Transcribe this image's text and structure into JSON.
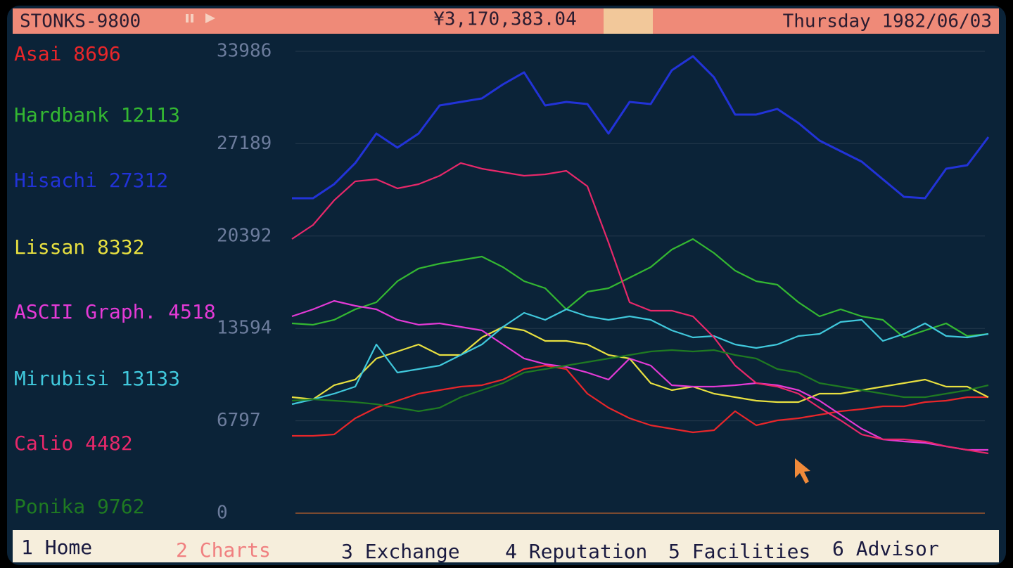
{
  "header": {
    "title": "STONKS-9800",
    "balance": "¥3,170,383.04",
    "date": "Thursday 1982/06/03"
  },
  "chart_data": {
    "type": "line",
    "ylim": [
      0,
      33986
    ],
    "yticks": [
      0,
      6797,
      13594,
      20392,
      27189,
      33986
    ],
    "grid": true,
    "series": [
      {
        "name": "Asai 8696",
        "color": "#e8262a",
        "values": [
          5690,
          5690,
          5794,
          6984,
          7759,
          8277,
          8794,
          9053,
          9311,
          9415,
          9829,
          10605,
          10863,
          10605,
          8794,
          7759,
          6984,
          6466,
          6208,
          5949,
          6104,
          7501,
          6466,
          6828,
          6984,
          7242,
          7501,
          7656,
          7863,
          7863,
          8173,
          8277,
          8535,
          8535
        ]
      },
      {
        "name": "Hardbank 12113",
        "color": "#34b832",
        "values": [
          13967,
          13864,
          14226,
          15002,
          15519,
          17071,
          18002,
          18364,
          18623,
          18881,
          18106,
          17071,
          16554,
          15002,
          16295,
          16554,
          17330,
          18106,
          19399,
          20175,
          19140,
          17847,
          17071,
          16812,
          15519,
          14484,
          15002,
          14484,
          14226,
          12932,
          13450,
          13967,
          13036,
          13191
        ]
      },
      {
        "name": "Hisachi 27312",
        "color": "#2233d8",
        "values": [
          23175,
          23175,
          24210,
          25762,
          27934,
          26900,
          27934,
          30003,
          30262,
          30521,
          31555,
          32435,
          30003,
          30262,
          30107,
          27934,
          30262,
          30107,
          32590,
          33625,
          32073,
          29331,
          29331,
          29745,
          28710,
          27417,
          26641,
          25865,
          24572,
          23279,
          23175,
          25348,
          25606,
          27676
        ]
      },
      {
        "name": "Lissan 8332",
        "color": "#e8e040",
        "values": [
          8535,
          8380,
          9415,
          9829,
          11381,
          11898,
          12415,
          11639,
          11639,
          12932,
          13708,
          13450,
          12674,
          12674,
          12415,
          11639,
          11381,
          9570,
          9053,
          9311,
          8794,
          8535,
          8277,
          8173,
          8173,
          8794,
          8794,
          9053,
          9311,
          9570,
          9829,
          9311,
          9311,
          8535
        ]
      },
      {
        "name": "ASCII Graph. 4518",
        "color": "#e43ad6",
        "values": [
          14484,
          15002,
          15622,
          15260,
          15002,
          14226,
          13864,
          13967,
          13708,
          13450,
          12415,
          11381,
          10967,
          10760,
          10346,
          9829,
          11381,
          10863,
          9415,
          9311,
          9311,
          9415,
          9570,
          9415,
          9053,
          8277,
          7242,
          6207,
          5432,
          5277,
          5173,
          4914,
          4656,
          4656
        ]
      },
      {
        "name": "Mirubisi 13133",
        "color": "#40c8dc",
        "values": [
          8018,
          8380,
          8794,
          9311,
          12415,
          10346,
          10605,
          10863,
          11639,
          12415,
          13708,
          14743,
          14226,
          15002,
          14484,
          14226,
          14484,
          14226,
          13450,
          12932,
          13036,
          12415,
          12157,
          12415,
          13036,
          13191,
          14071,
          14226,
          12674,
          13191,
          13967,
          13036,
          12932,
          13191
        ]
      },
      {
        "name": "Calio 4482",
        "color": "#e8286a",
        "values": [
          20175,
          21209,
          23020,
          24417,
          24572,
          23899,
          24210,
          24830,
          25762,
          25348,
          25089,
          24830,
          24934,
          25193,
          24054,
          19916,
          15519,
          14898,
          14898,
          14484,
          12932,
          10863,
          9570,
          9311,
          8794,
          7759,
          6828,
          5793,
          5432,
          5432,
          5277,
          4914,
          4656,
          4397
        ]
      },
      {
        "name": "Ponika 9762",
        "color": "#1f7a22",
        "values": [
          8277,
          8380,
          8277,
          8173,
          8018,
          7759,
          7501,
          7759,
          8535,
          9053,
          9570,
          10346,
          10605,
          10863,
          11122,
          11381,
          11639,
          11898,
          12001,
          11898,
          12001,
          11639,
          11381,
          10605,
          10346,
          9570,
          9311,
          9053,
          8794,
          8535,
          8535,
          8794,
          9053,
          9415
        ]
      }
    ]
  },
  "menu": [
    "1 Home",
    "2 Charts",
    "3 Exchange",
    "4 Reputation",
    "5 Facilities",
    "6 Advisor"
  ]
}
